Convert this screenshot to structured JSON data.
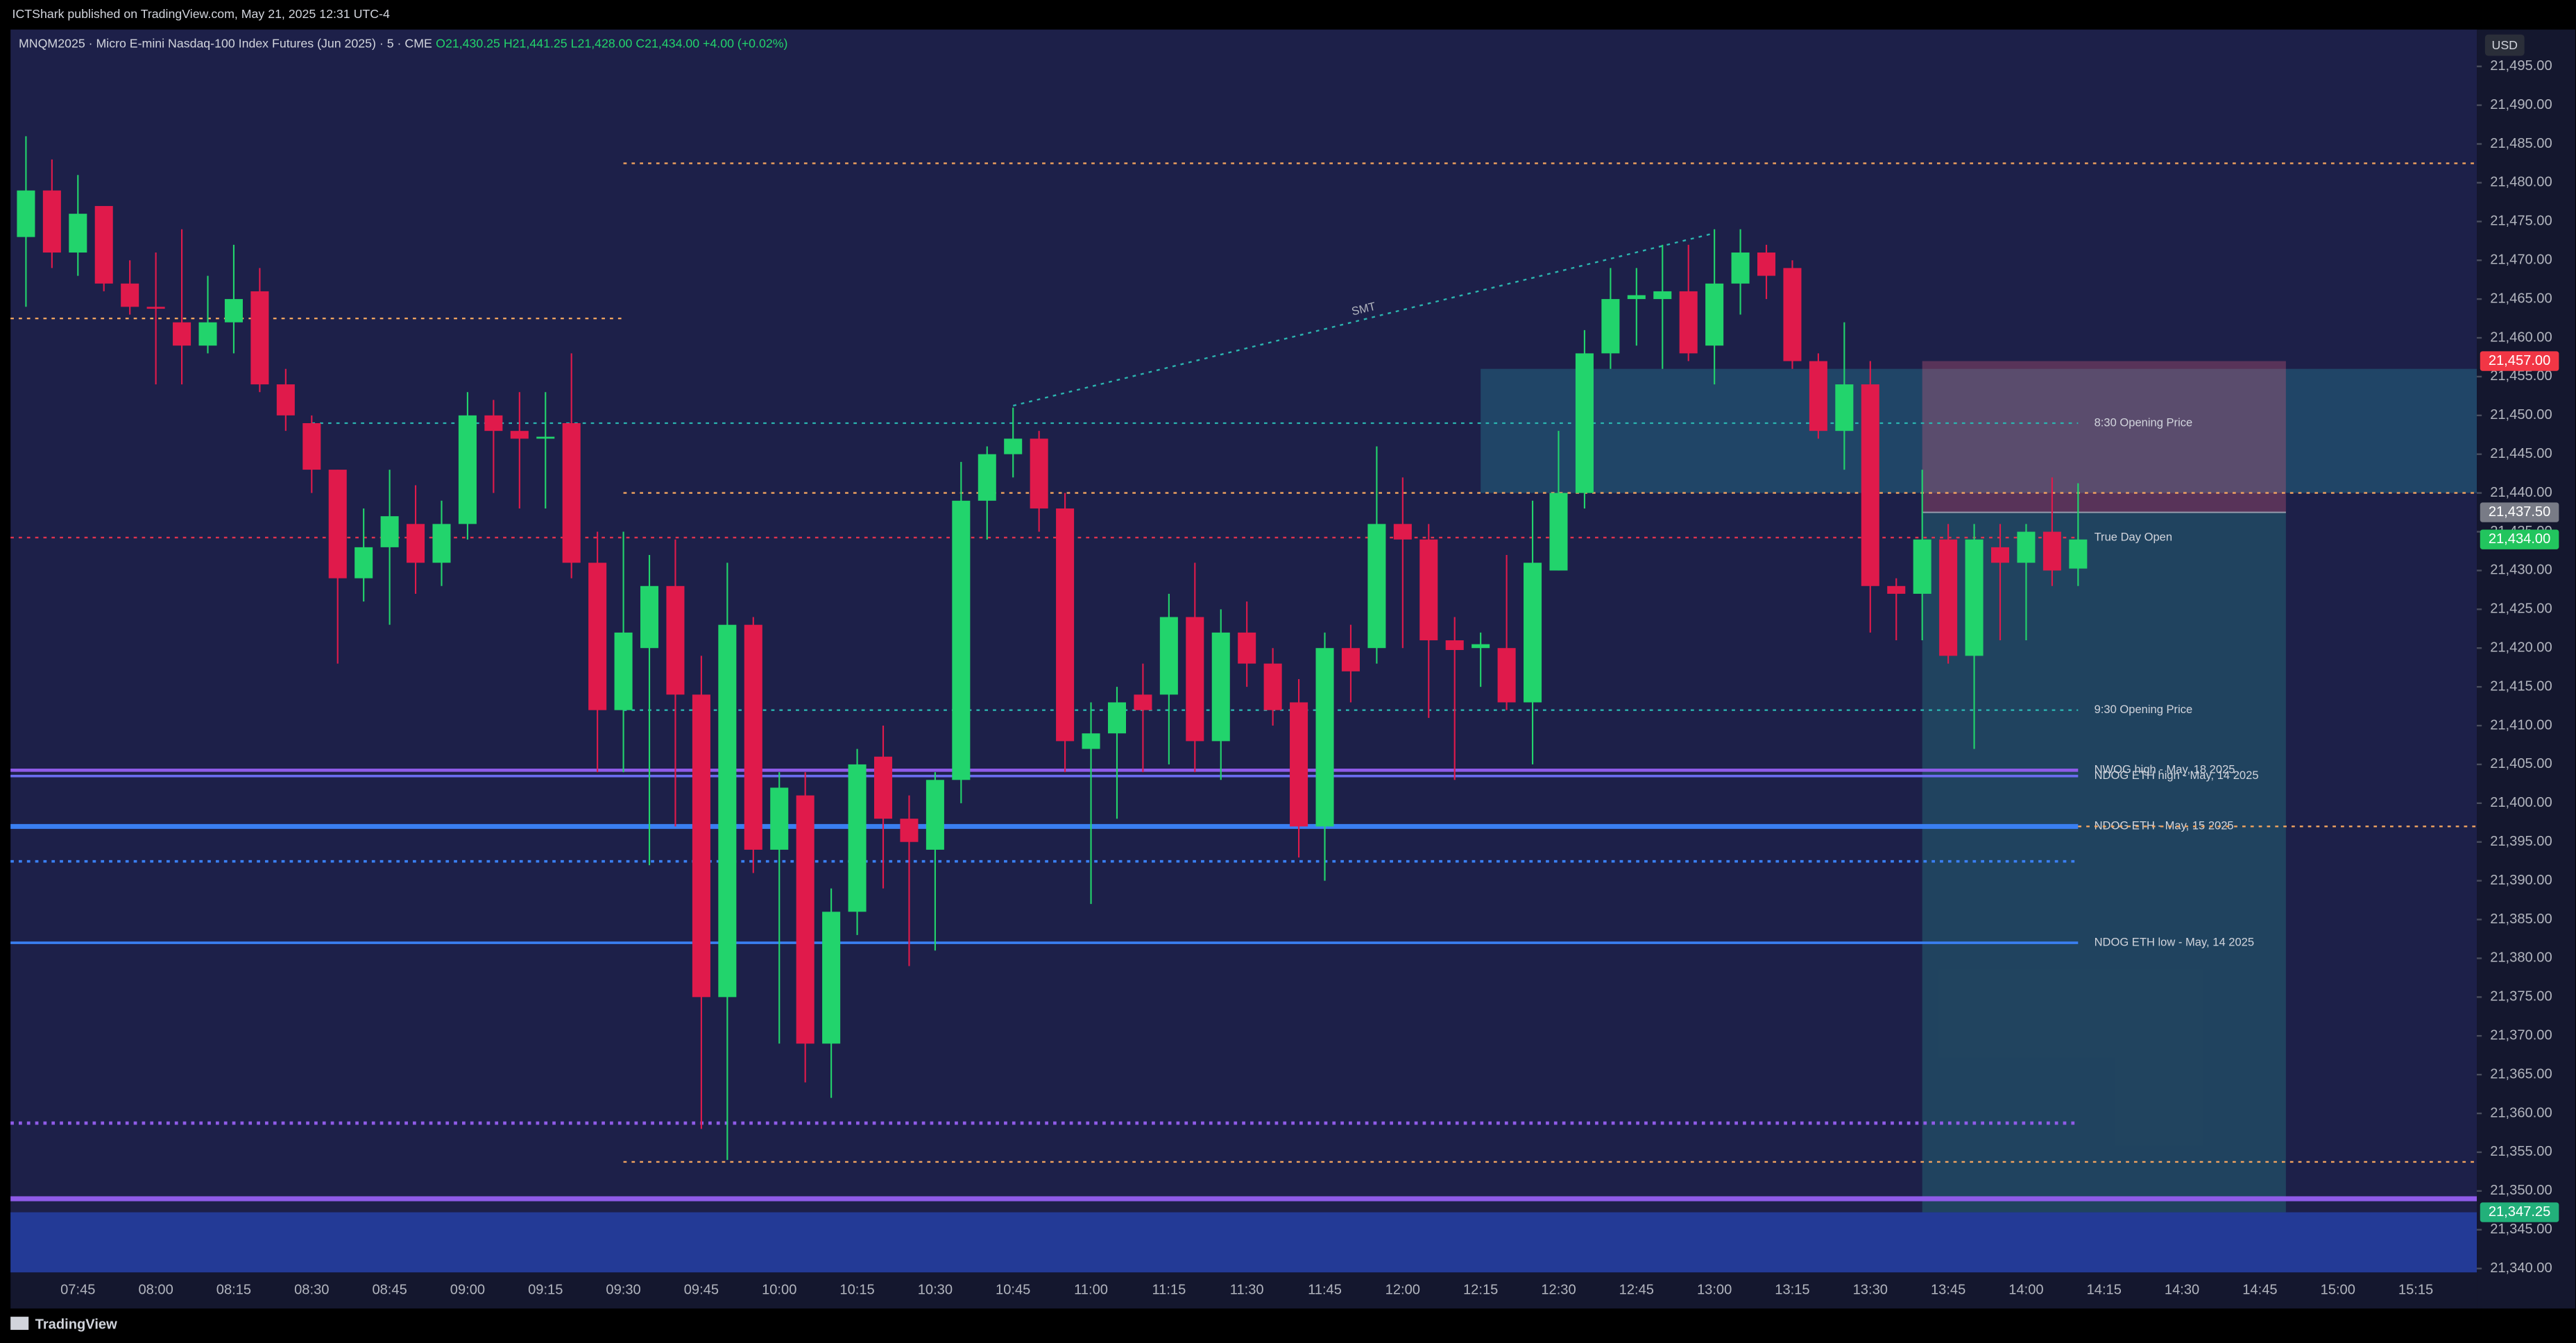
{
  "header": {
    "publisher": "ICTShark published on TradingView.com, May 21, 2025 12:31 UTC-4"
  },
  "footer": {
    "brand": "TradingView"
  },
  "chart_data": {
    "type": "candlestick",
    "symbol": "MNQM2025 · Micro E-mini Nasdaq-100 Index Futures (Jun 2025) · 5 · CME",
    "ohlc_text": "O21,430.25 H21,441.25 L21,428.00 C21,434.00 +4.00 (+0.02%)",
    "currency": "USD",
    "up_color": "#22d46c",
    "down_color": "#e01a4b",
    "background": "#1d2049",
    "grid": false,
    "x": [
      "07:35",
      "07:40",
      "07:45",
      "07:50",
      "07:55",
      "08:00",
      "08:05",
      "08:10",
      "08:15",
      "08:20",
      "08:25",
      "08:30",
      "08:35",
      "08:40",
      "08:45",
      "08:50",
      "08:55",
      "09:00",
      "09:05",
      "09:10",
      "09:15",
      "09:20",
      "09:25",
      "09:30",
      "09:35",
      "09:40",
      "09:45",
      "09:50",
      "09:55",
      "10:00",
      "10:05",
      "10:10",
      "10:15",
      "10:20",
      "10:25",
      "10:30",
      "10:35",
      "10:40",
      "10:45",
      "10:50",
      "10:55",
      "11:00",
      "11:05",
      "11:10",
      "11:15",
      "11:20",
      "11:25",
      "11:30",
      "11:35",
      "11:40",
      "11:45",
      "11:50",
      "11:55",
      "12:00",
      "12:05",
      "12:10",
      "12:15",
      "12:20",
      "12:25",
      "12:30",
      "12:35",
      "12:40",
      "12:45",
      "12:50",
      "12:55",
      "13:00",
      "13:05",
      "13:10",
      "13:15",
      "13:20",
      "13:25",
      "13:30",
      "13:35",
      "13:40",
      "13:45",
      "13:50",
      "13:55",
      "14:00",
      "14:05",
      "14:10"
    ],
    "open": [
      21473,
      21479,
      21471,
      21477,
      21467,
      21464,
      21462,
      21459,
      21462,
      21466,
      21454,
      21449,
      21443,
      21429,
      21433,
      21436,
      21431,
      21436,
      21450,
      21448,
      21447,
      21449,
      21431,
      21412,
      21420,
      21428,
      21414,
      21375,
      21423,
      21394,
      21401,
      21369,
      21386,
      21406,
      21398,
      21394,
      21403,
      21439,
      21445,
      21447,
      21438,
      21407,
      21409,
      21414,
      21414,
      21424,
      21408,
      21422,
      21418,
      21413,
      21397,
      21420,
      21420,
      21436,
      21434,
      21421,
      21420,
      21420,
      21413,
      21430,
      21440,
      21458,
      21465,
      21465,
      21466,
      21459,
      21467,
      21471,
      21469,
      21457,
      21448,
      21454,
      21428,
      21427,
      21434,
      21419,
      21433,
      21431,
      21435,
      21430.25
    ],
    "high": [
      21486,
      21483,
      21481,
      21477,
      21470,
      21471,
      21474,
      21468,
      21472,
      21469,
      21456,
      21450,
      21443,
      21438,
      21443,
      21441,
      21439,
      21453,
      21452,
      21453,
      21453,
      21458,
      21435,
      21435,
      21432,
      21434,
      21419,
      21431,
      21424,
      21404,
      21404,
      21389,
      21407,
      21410,
      21401,
      21404,
      21444,
      21446,
      21451,
      21448,
      21440,
      21413,
      21415,
      21418,
      21427,
      21431,
      21425,
      21426,
      21420,
      21416,
      21422,
      21423,
      21446,
      21442,
      21436,
      21424,
      21422,
      21432,
      21439,
      21448,
      21461,
      21469,
      21469,
      21472,
      21472,
      21474,
      21474,
      21472,
      21470,
      21458,
      21462,
      21457,
      21429,
      21443,
      21436,
      21436,
      21436,
      21436,
      21442,
      21441.25
    ],
    "low": [
      21464,
      21469,
      21468,
      21466,
      21463,
      21454,
      21454,
      21458,
      21458,
      21453,
      21448,
      21440,
      21418,
      21426,
      21423,
      21427,
      21428,
      21434,
      21440,
      21438,
      21438,
      21429,
      21404,
      21404,
      21392,
      21397,
      21358,
      21354,
      21391,
      21369,
      21364,
      21362,
      21383,
      21389,
      21379,
      21381,
      21400,
      21434,
      21442,
      21435,
      21404,
      21387,
      21398,
      21404,
      21405,
      21404,
      21403,
      21415,
      21410,
      21393,
      21390,
      21413,
      21418,
      21420,
      21411,
      21403,
      21415,
      21412,
      21405,
      21430,
      21438,
      21456,
      21459,
      21456,
      21457,
      21454,
      21463,
      21465,
      21456,
      21447,
      21443,
      21422,
      21421,
      21421,
      21418,
      21407,
      21421,
      21421,
      21428,
      21428
    ],
    "close": [
      21479,
      21471,
      21476,
      21467,
      21464,
      21463.75,
      21459,
      21462,
      21465,
      21454,
      21450,
      21443,
      21429,
      21433,
      21437,
      21431,
      21436,
      21450,
      21448,
      21447,
      21447.25,
      21431,
      21412,
      21422,
      21428,
      21414,
      21375,
      21423,
      21394,
      21402,
      21369,
      21386,
      21405,
      21398,
      21395,
      21403,
      21439,
      21445,
      21447,
      21438,
      21408,
      21409,
      21413,
      21412,
      21424,
      21408,
      21422,
      21418,
      21412,
      21397,
      21420,
      21417,
      21436,
      21434,
      21421,
      21419.75,
      21420.5,
      21413,
      21431,
      21440,
      21458,
      21465,
      21465.5,
      21466,
      21458,
      21467,
      21471,
      21468,
      21457,
      21448,
      21454,
      21428,
      21427,
      21434,
      21419,
      21434,
      21431,
      21435,
      21430,
      21434
    ],
    "ylim": [
      21339.5,
      21499.75
    ],
    "yticks": [
      {
        "value": 21340,
        "label": "21,340.00"
      },
      {
        "value": 21345,
        "label": "21,345.00"
      },
      {
        "value": 21350,
        "label": "21,350.00"
      },
      {
        "value": 21355,
        "label": "21,355.00"
      },
      {
        "value": 21360,
        "label": "21,360.00"
      },
      {
        "value": 21365,
        "label": "21,365.00"
      },
      {
        "value": 21370,
        "label": "21,370.00"
      },
      {
        "value": 21375,
        "label": "21,375.00"
      },
      {
        "value": 21380,
        "label": "21,380.00"
      },
      {
        "value": 21385,
        "label": "21,385.00"
      },
      {
        "value": 21390,
        "label": "21,390.00"
      },
      {
        "value": 21395,
        "label": "21,395.00"
      },
      {
        "value": 21400,
        "label": "21,400.00"
      },
      {
        "value": 21405,
        "label": "21,405.00"
      },
      {
        "value": 21410,
        "label": "21,410.00"
      },
      {
        "value": 21415,
        "label": "21,415.00"
      },
      {
        "value": 21420,
        "label": "21,420.00"
      },
      {
        "value": 21425,
        "label": "21,425.00"
      },
      {
        "value": 21430,
        "label": "21,430.00"
      },
      {
        "value": 21435,
        "label": "21,435.00"
      },
      {
        "value": 21440,
        "label": "21,440.00"
      },
      {
        "value": 21445,
        "label": "21,445.00"
      },
      {
        "value": 21450,
        "label": "21,450.00"
      },
      {
        "value": 21455,
        "label": "21,455.00"
      },
      {
        "value": 21460,
        "label": "21,460.00"
      },
      {
        "value": 21465,
        "label": "21,465.00"
      },
      {
        "value": 21470,
        "label": "21,470.00"
      },
      {
        "value": 21475,
        "label": "21,475.00"
      },
      {
        "value": 21480,
        "label": "21,480.00"
      },
      {
        "value": 21485,
        "label": "21,485.00"
      },
      {
        "value": 21490,
        "label": "21,490.00"
      },
      {
        "value": 21495,
        "label": "21,495.00"
      }
    ],
    "xticks": [
      "07:45",
      "08:00",
      "08:15",
      "08:30",
      "08:45",
      "09:00",
      "09:15",
      "09:30",
      "09:45",
      "10:00",
      "10:15",
      "10:30",
      "10:45",
      "11:00",
      "11:15",
      "11:30",
      "11:45",
      "12:00",
      "12:15",
      "12:30",
      "12:45",
      "13:00",
      "13:15",
      "13:30",
      "13:45",
      "14:00",
      "14:15",
      "14:30",
      "14:45",
      "15:00",
      "15:15"
    ],
    "levels": [
      {
        "value": 21482.5,
        "from": "09:30",
        "extend_right": true,
        "color": "#f3a45f",
        "dash": "dot",
        "width": 1
      },
      {
        "value": 21462.5,
        "extend_left": true,
        "to": "09:30",
        "color": "#f3a45f",
        "dash": "dot",
        "width": 1
      },
      {
        "value": 21449,
        "from": "08:30",
        "to": "14:10",
        "color": "#2bb5b0",
        "dash": "dot",
        "width": 1,
        "label": "8:30 Opening Price"
      },
      {
        "value": 21440,
        "from": "09:30",
        "extend_right": true,
        "color": "#f3a45f",
        "dash": "dot",
        "width": 1
      },
      {
        "value": 21434.25,
        "extend_left": true,
        "to": "14:10",
        "color": "#e0334f",
        "dash": "dot",
        "width": 1,
        "label": "True Day Open"
      },
      {
        "value": 21412,
        "from": "09:30",
        "to": "14:10",
        "color": "#2bb5b0",
        "dash": "dot",
        "width": 1,
        "label": "9:30 Opening Price"
      },
      {
        "value": 21404.25,
        "extend_left": true,
        "to": "14:10",
        "color": "#8f5be8",
        "dash": "solid",
        "width": 2,
        "label": "NWOG high - May, 18 2025"
      },
      {
        "value": 21403.5,
        "extend_left": true,
        "to": "14:10",
        "color": "#6b6cf0",
        "dash": "solid",
        "width": 1.5,
        "label": "NDOG ETH high - May, 14 2025"
      },
      {
        "value": 21397,
        "extend_left": true,
        "to": "14:10",
        "color": "#3a7ff2",
        "dash": "solid",
        "width": 3,
        "label": "NDOG ETH - May, 15 2025"
      },
      {
        "value": 21397,
        "from": "14:10",
        "extend_right": true,
        "color": "#f3a45f",
        "dash": "dot",
        "width": 1
      },
      {
        "value": 21392.5,
        "extend_left": true,
        "to": "14:10",
        "color": "#3a7ff2",
        "dash": "dot",
        "width": 1.5
      },
      {
        "value": 21382,
        "extend_left": true,
        "to": "14:10",
        "color": "#3a7ff2",
        "dash": "solid",
        "width": 1.5,
        "label": "NDOG ETH low - May, 14 2025"
      },
      {
        "value": 21358.75,
        "extend_left": true,
        "to": "14:10",
        "color": "#8f5be8",
        "dash": "dot",
        "width": 2
      },
      {
        "value": 21353.75,
        "from": "09:30",
        "extend_right": true,
        "color": "#f3a45f",
        "dash": "dot",
        "width": 1
      },
      {
        "value": 21349,
        "extend_left": true,
        "extend_right": true,
        "color": "#8f5be8",
        "dash": "solid",
        "width": 3
      }
    ],
    "zones": [
      {
        "top": 21456,
        "bottom": 21440,
        "from": "12:15",
        "extend_right": true,
        "color": "rgba(40,140,160,0.35)"
      },
      {
        "top": 21347.25,
        "extend_left": true,
        "extend_right": true,
        "extend_down": true,
        "color": "#233a96"
      }
    ],
    "position": {
      "from": "13:40",
      "to": "14:50",
      "entry": 21437.5,
      "stop": 21457,
      "target": 21347.25,
      "stop_color": "rgba(200,90,120,0.35)",
      "target_color": "rgba(40,140,140,0.33)"
    },
    "smt": {
      "label": "SMT",
      "from": "10:45",
      "from_price": 21451.25,
      "to": "13:00",
      "to_price": 21473.5,
      "color": "#2bb5b0"
    },
    "price_tags": [
      {
        "value": 21457,
        "label": "21,457.00",
        "color": "#f23645"
      },
      {
        "value": 21437.5,
        "label": "21,437.50",
        "color": "#787b86"
      },
      {
        "value": 21434,
        "label": "21,434.00",
        "color": "#22c55e"
      },
      {
        "value": 21347.25,
        "label": "21,347.25",
        "color": "#22b07a"
      }
    ]
  }
}
